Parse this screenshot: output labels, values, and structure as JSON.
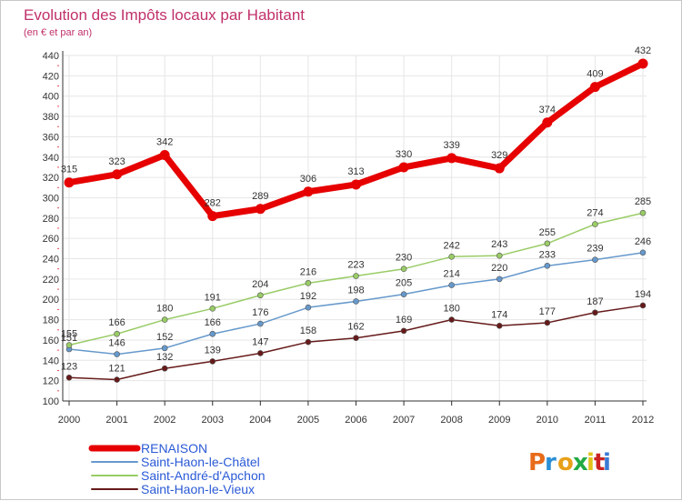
{
  "chart_data": {
    "type": "line",
    "title": "Evolution des Impôts locaux par Habitant",
    "subtitle": "(en € et par an)",
    "xlabel": "",
    "ylabel": "",
    "ylim": [
      100,
      440
    ],
    "ytick_step": 20,
    "grid": true,
    "legend_position": "bottom-left",
    "categories": [
      "2000",
      "2001",
      "2002",
      "2003",
      "2004",
      "2005",
      "2006",
      "2007",
      "2008",
      "2009",
      "2010",
      "2011",
      "2012"
    ],
    "series": [
      {
        "name": "RENAISON",
        "color": "#e60000",
        "values": [
          315,
          323,
          342,
          282,
          289,
          306,
          313,
          330,
          339,
          329,
          374,
          409,
          432
        ]
      },
      {
        "name": "Saint-Haon-le-Châtel",
        "color": "#6699cc",
        "values": [
          151,
          146,
          152,
          166,
          176,
          192,
          198,
          205,
          214,
          220,
          233,
          239,
          246
        ]
      },
      {
        "name": "Saint-André-d'Apchon",
        "color": "#99cc66",
        "values": [
          155,
          166,
          180,
          191,
          204,
          216,
          223,
          230,
          242,
          243,
          255,
          274,
          285
        ]
      },
      {
        "name": "Saint-Haon-le-Vieux",
        "color": "#661a1a",
        "values": [
          123,
          121,
          132,
          139,
          147,
          158,
          162,
          169,
          180,
          174,
          177,
          187,
          194
        ]
      }
    ]
  },
  "logo": {
    "text": "Proxiti",
    "colors": [
      "#e86b1a",
      "#2a8fd6",
      "#e8a01a",
      "#22aa44",
      "#e0c21a",
      "#cc2222",
      "#3a7bd5"
    ]
  }
}
